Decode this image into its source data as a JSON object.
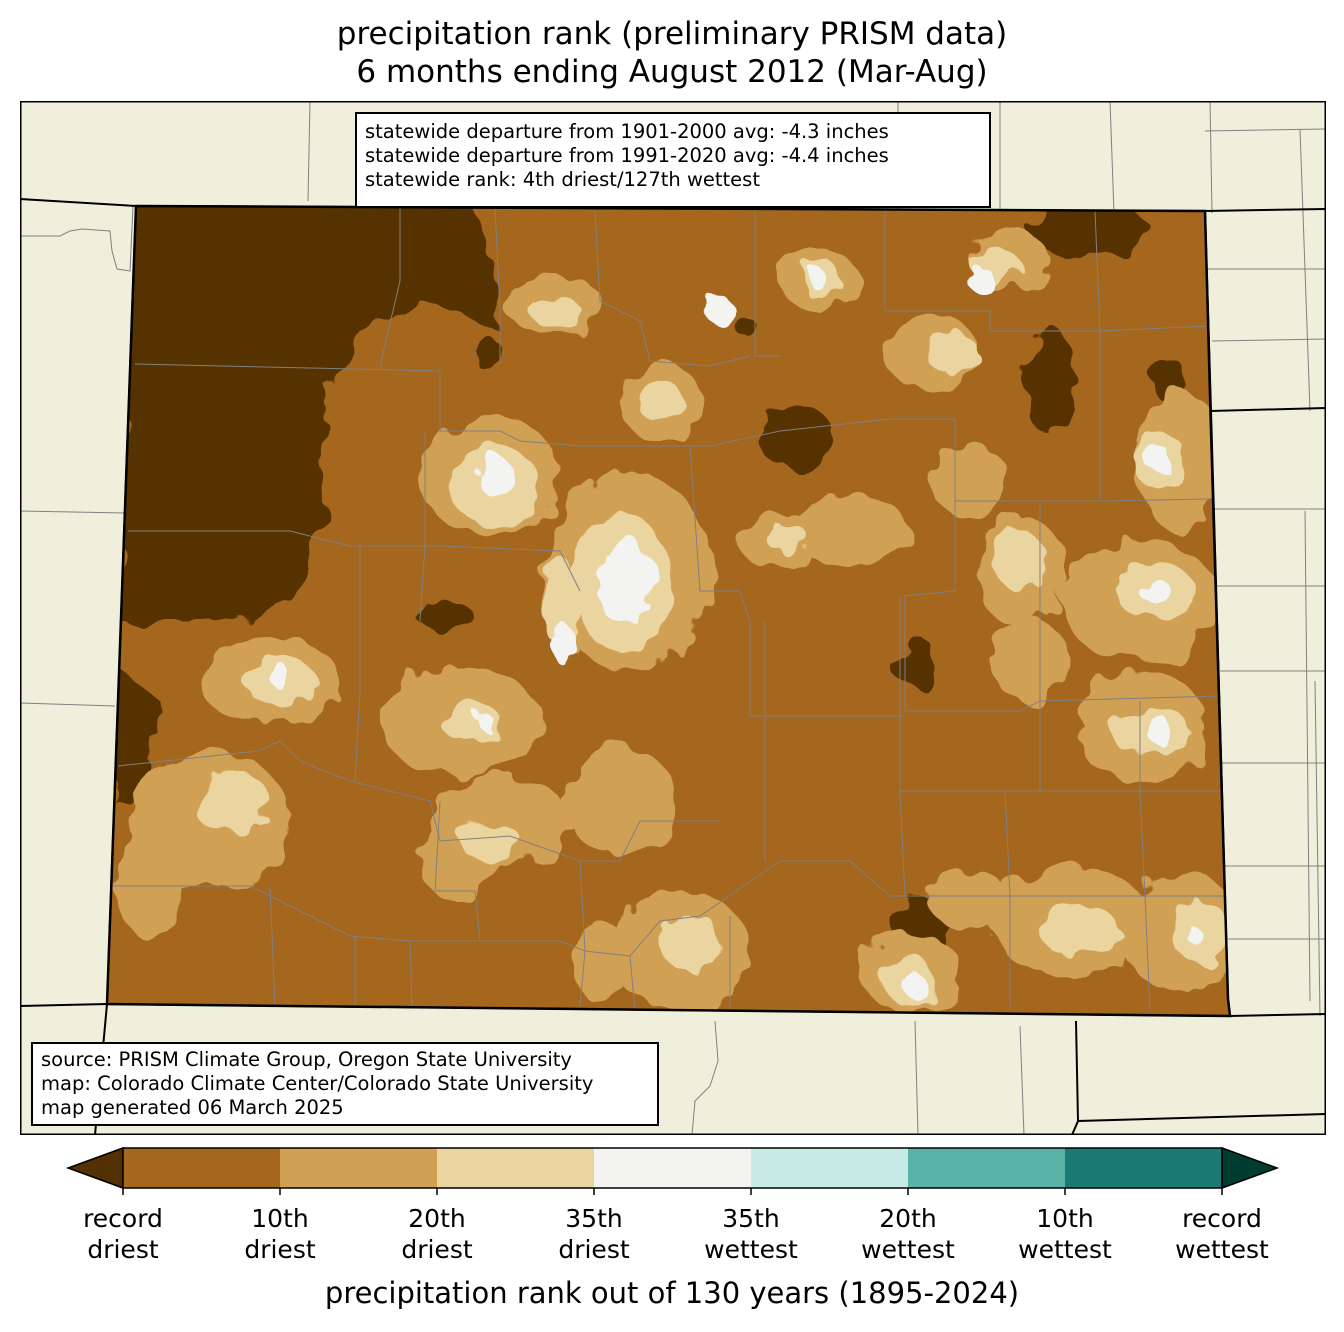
{
  "title": {
    "line1": "precipitation rank (preliminary PRISM data)",
    "line2": "6 months ending August 2012 (Mar-Aug)"
  },
  "stats": {
    "line1": "statewide departure from 1901-2000 avg: -4.3 inches",
    "line2": "statewide departure from 1991-2020 avg: -4.4 inches",
    "line3": "statewide rank: 4th driest/127th wettest"
  },
  "credits": {
    "line1": "source: PRISM Climate Group, Oregon State University",
    "line2": "map: Colorado Climate Center/Colorado State University",
    "line3": "map generated 06 March 2025"
  },
  "colorbar": {
    "title": "precipitation rank out of 130 years (1895-2024)",
    "under_color": "#543005",
    "over_color": "#003c30",
    "bins": [
      {
        "color": "#a5661d"
      },
      {
        "color": "#d0a054"
      },
      {
        "color": "#ead4a0"
      },
      {
        "color": "#f3f4f1"
      },
      {
        "color": "#c6ebe4"
      },
      {
        "color": "#5ab2a8"
      },
      {
        "color": "#1a7b74"
      }
    ],
    "ticks": [
      {
        "l1": "record",
        "l2": "driest"
      },
      {
        "l1": "10th",
        "l2": "driest"
      },
      {
        "l1": "20th",
        "l2": "driest"
      },
      {
        "l1": "35th",
        "l2": "driest"
      },
      {
        "l1": "35th",
        "l2": "wettest"
      },
      {
        "l1": "20th",
        "l2": "wettest"
      },
      {
        "l1": "10th",
        "l2": "wettest"
      },
      {
        "l1": "record",
        "l2": "wettest"
      }
    ]
  },
  "map": {
    "background_color": "#efefdc",
    "dominant_color": "#a5661d"
  }
}
